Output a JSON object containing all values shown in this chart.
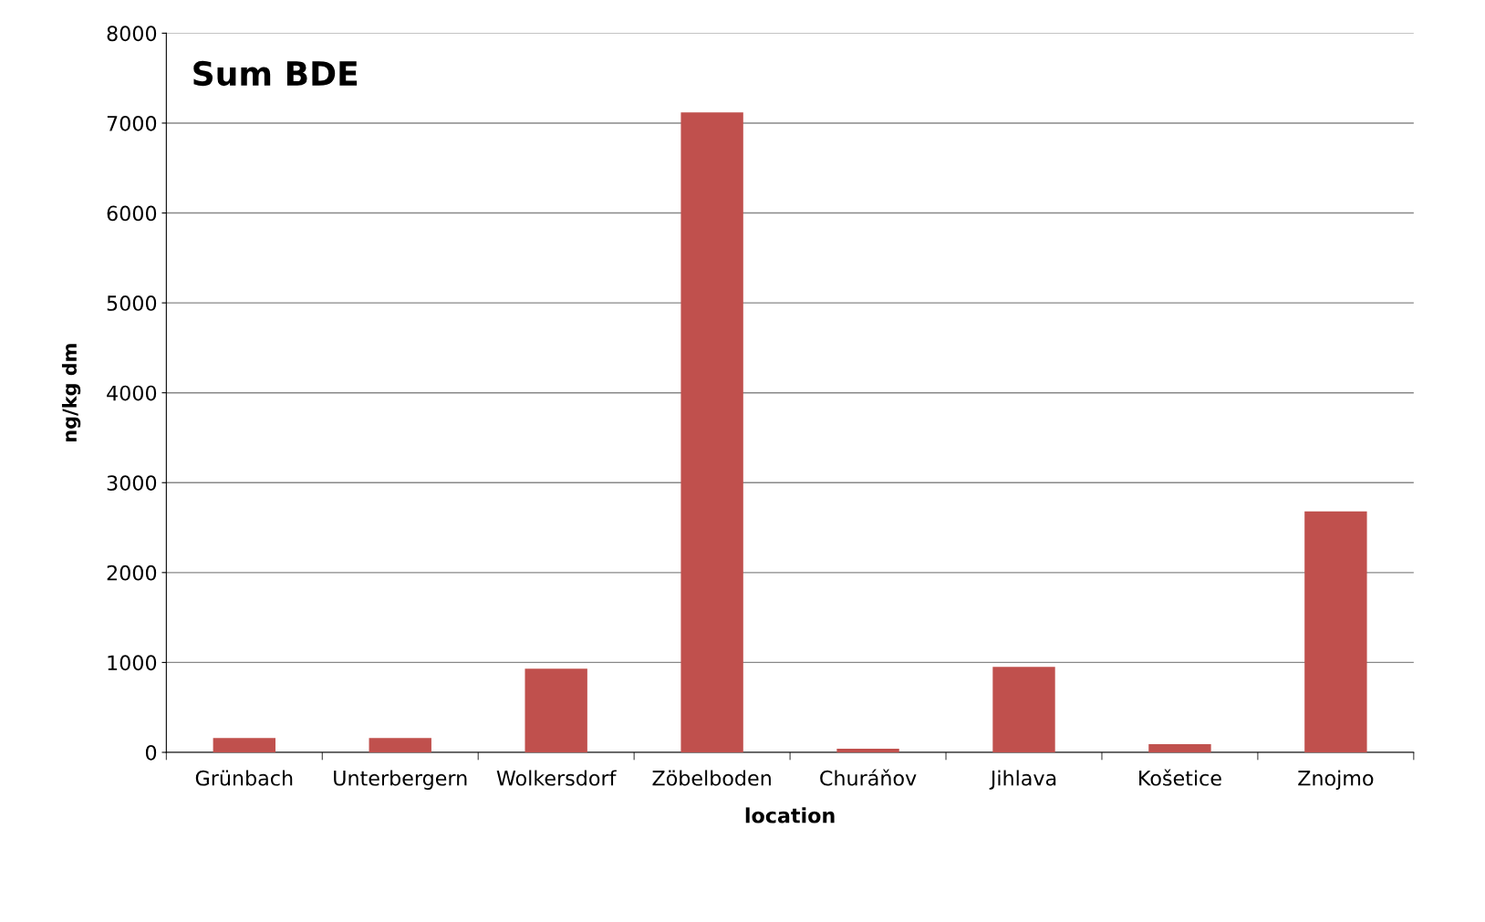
{
  "chart_data": {
    "type": "bar",
    "title": "Sum BDE",
    "xlabel": "location",
    "ylabel": "ng/kg dm",
    "categories": [
      "Grünbach",
      "Unterbergern",
      "Wolkersdorf",
      "Zöbelboden",
      "Churáňov",
      "Jihlava",
      "Košetice",
      "Znojmo"
    ],
    "values": [
      160,
      160,
      930,
      7120,
      40,
      950,
      90,
      2680
    ],
    "color": "#c0504d",
    "ylim": [
      0,
      8000
    ],
    "yticks": [
      0,
      1000,
      2000,
      3000,
      4000,
      5000,
      6000,
      7000,
      8000
    ],
    "grid": "y",
    "legend": false
  }
}
